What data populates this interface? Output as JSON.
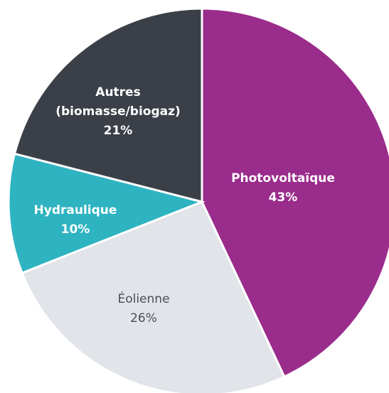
{
  "chart_data": {
    "type": "pie",
    "categories": [
      "Photovoltaïque",
      "Éolienne",
      "Hydraulique",
      "Autres (biomasse/biogaz)"
    ],
    "values": [
      43,
      26,
      10,
      21
    ],
    "value_labels": [
      "43%",
      "26%",
      "10%",
      "21%"
    ],
    "colors": [
      "#9a2c8c",
      "#e1e4e9",
      "#2eb3c1",
      "#3a3f48"
    ]
  }
}
